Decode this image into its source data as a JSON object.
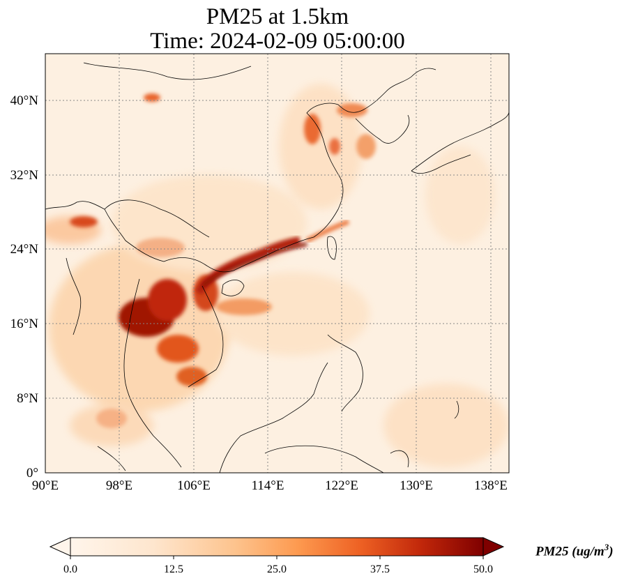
{
  "title_line1": "PM25 at 1.5km",
  "title_line2": "Time: 2024-02-09 05:00:00",
  "map": {
    "type": "filled-contour map",
    "variable": "PM25",
    "level": "1.5km",
    "time": "2024-02-09 05:00:00",
    "lon_range": [
      90,
      140
    ],
    "lat_range": [
      0,
      44
    ],
    "xticks": [
      "90°E",
      "98°E",
      "106°E",
      "114°E",
      "122°E",
      "130°E",
      "138°E"
    ],
    "yticks": [
      "0°",
      "8°N",
      "16°N",
      "24°N",
      "32°N",
      "40°N"
    ],
    "grid": "dotted gray gridlines"
  },
  "colorbar": {
    "ticks": [
      "0.0",
      "12.5",
      "25.0",
      "37.5",
      "50.0"
    ],
    "label_main": "PM25 (ug/m",
    "label_sup": "3",
    "label_close": ")",
    "colors": [
      "#fff5eb",
      "#fdd9b4",
      "#fda762",
      "#e5590a",
      "#b92c05",
      "#7f0000"
    ],
    "extend": "both"
  },
  "chart_data": {
    "type": "heatmap",
    "title": "PM25 at 1.5km\nTime: 2024-02-09 05:00:00",
    "x_range": [
      90,
      140
    ],
    "y_range": [
      0,
      44
    ],
    "x_ticks": [
      90,
      98,
      106,
      114,
      122,
      130,
      138
    ],
    "y_ticks": [
      0,
      8,
      16,
      24,
      32,
      40
    ],
    "color_range": [
      0,
      50
    ],
    "colorbar_label": "PM25 (ug/m^3)",
    "grid": true
  }
}
